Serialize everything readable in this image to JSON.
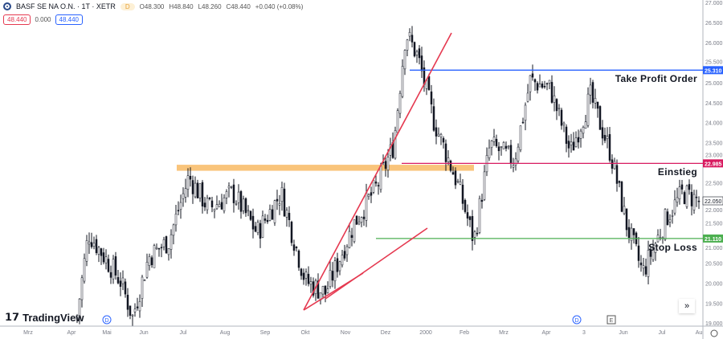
{
  "header": {
    "symbol": "BASF SE NA O.N. · 1T · XETR",
    "interval_badge": "D",
    "open": "O48.300",
    "high": "H48.840",
    "low": "L48.260",
    "close": "C48.440",
    "change": "+0.040 (+0.08%)",
    "bid": "48.440",
    "spread": "0.000",
    "ask": "48.440"
  },
  "branding": {
    "name": "TradingView"
  },
  "annotations": {
    "take_profit": "Take Profit Order",
    "entry": "Einstieg",
    "stop_loss": "Stop Loss"
  },
  "colors": {
    "take_profit": "#2962ff",
    "entry": "#d81b60",
    "stop_loss": "#4caf50",
    "zone": "#f7b55a",
    "trend": "#e53950",
    "candle": "#131722"
  },
  "chart_data": {
    "type": "candlestick",
    "ylim": [
      19.0,
      27.0
    ],
    "y_ticks": [
      "27.000",
      "26.500",
      "26.000",
      "25.500",
      "25.000",
      "24.500",
      "24.000",
      "23.500",
      "23.000",
      "22.500",
      "22.000",
      "21.500",
      "21.000",
      "20.500",
      "20.000",
      "19.500",
      "19.000"
    ],
    "x_ticks": [
      "Mrz",
      "Apr",
      "Mai",
      "Jun",
      "Jul",
      "Aug",
      "Sep",
      "Okt",
      "Nov",
      "Dez",
      "2000",
      "Feb",
      "Mrz",
      "Apr",
      "3",
      "Jun",
      "Jul",
      "Au"
    ],
    "last_price": "22.050",
    "price_path": [
      [
        "Apr",
        19.05
      ],
      [
        "Apr",
        21.25
      ],
      [
        "Mai",
        20.65
      ],
      [
        "Mai",
        20.05
      ],
      [
        "Jun",
        19.15
      ],
      [
        "Jun",
        20.65
      ],
      [
        "Jul",
        21.05
      ],
      [
        "Jul",
        22.65
      ],
      [
        "Aug",
        21.85
      ],
      [
        "Aug",
        22.25
      ],
      [
        "Sep",
        21.25
      ],
      [
        "Sep",
        22.25
      ],
      [
        "Okt",
        20.05
      ],
      [
        "Okt",
        19.75
      ],
      [
        "Nov",
        21.45
      ],
      [
        "Nov",
        22.45
      ],
      [
        "Dez",
        23.45
      ],
      [
        "Dez",
        26.25
      ],
      [
        "2000",
        25.65
      ],
      [
        "2000",
        24.05
      ],
      [
        "Feb",
        22.45
      ],
      [
        "Feb",
        21.05
      ],
      [
        "Mrz",
        23.45
      ],
      [
        "Mrz",
        23.05
      ],
      [
        "Apr",
        25.05
      ],
      [
        "Apr",
        24.85
      ],
      [
        "3",
        23.25
      ],
      [
        "3",
        24.65
      ],
      [
        "Jun",
        23.25
      ],
      [
        "Jun",
        21.45
      ],
      [
        "Jul",
        20.25
      ],
      [
        "Jul",
        21.65
      ],
      [
        "Au",
        22.25
      ],
      [
        "Au",
        22.05
      ]
    ],
    "levels": [
      {
        "name": "take_profit",
        "value": 25.31,
        "label": "25.310"
      },
      {
        "name": "entry",
        "value": 22.985,
        "label": "22.985"
      },
      {
        "name": "stop_loss",
        "value": 21.11,
        "label": "21.110"
      }
    ],
    "zone": [
      22.8,
      22.95
    ],
    "markers": [
      "D",
      "D",
      "E"
    ]
  }
}
